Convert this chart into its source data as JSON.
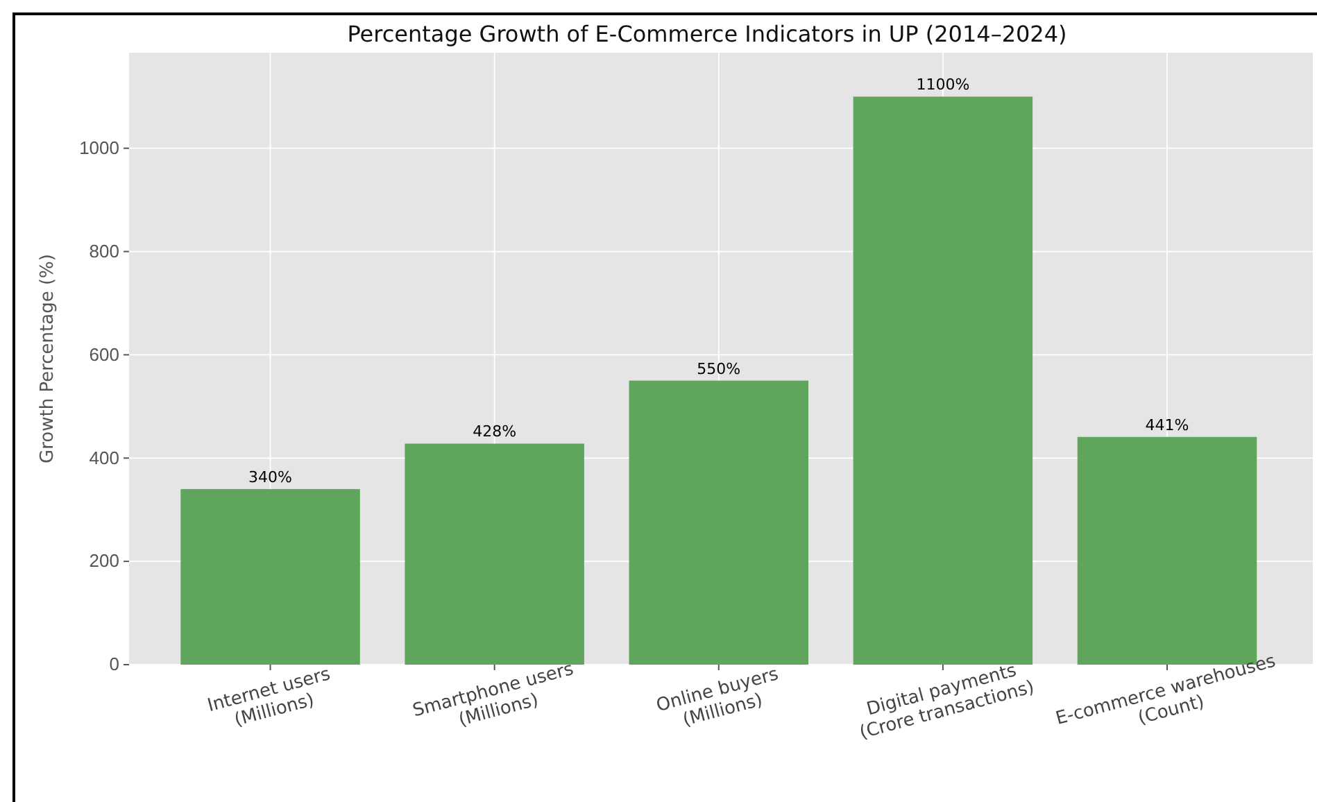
{
  "chart_data": {
    "type": "bar",
    "title": "Percentage Growth of E-Commerce Indicators in UP (2014–2024)",
    "ylabel": "Growth Percentage (%)",
    "categories": [
      "Internet users\n(Millions)",
      "Smartphone users\n(Millions)",
      "Online buyers\n(Millions)",
      "Digital payments\n(Crore transactions)",
      "E-commerce warehouses\n(Count)"
    ],
    "values": [
      340,
      428,
      550,
      1100,
      441
    ],
    "value_labels": [
      "340%",
      "428%",
      "550%",
      "1100%",
      "441%"
    ],
    "color": "#5fa65c",
    "ylim": [
      0,
      1185
    ],
    "yticks": [
      0,
      200,
      400,
      600,
      800,
      1000
    ],
    "grid": true
  }
}
